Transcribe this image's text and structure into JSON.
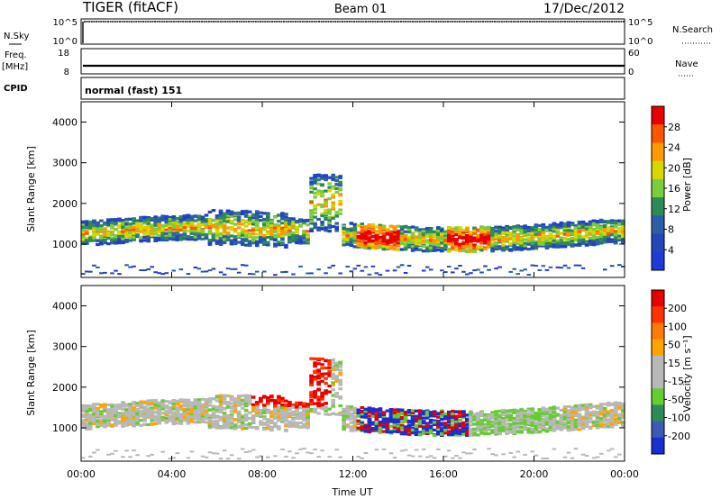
{
  "header": {
    "station": "TIGER (fitACF)",
    "beam": "Beam 01",
    "date": "17/Dec/2012"
  },
  "status_panels": {
    "nsky_label": "N.Sky",
    "nsky_ticks": [
      "10^5",
      "10^0"
    ],
    "nsearch_label": "N.Search",
    "nsearch_ticks": [
      "10^5",
      "10^0"
    ],
    "freq_label_top": "Freq.",
    "freq_label_unit": "[MHz]",
    "freq_ticks": [
      "18",
      "8"
    ],
    "nave_label": "Nave",
    "nave_ticks": [
      "60",
      "0"
    ],
    "cpid_label": "CPID",
    "cpid_value": "normal (fast) 151"
  },
  "colors": {
    "power": [
      "#1f3ad9",
      "#2346b8",
      "#2c5fa8",
      "#2e8b57",
      "#7ccd3c",
      "#d6d600",
      "#ff9900",
      "#ff5500",
      "#e60000"
    ],
    "velocity": [
      "#1a2fd0",
      "#3c5bb5",
      "#2e8b57",
      "#66cc33",
      "#b8b8b8",
      "#b8b8b8",
      "#ffa500",
      "#ff7a00",
      "#ff3300",
      "#e60000"
    ]
  },
  "chart_data": [
    {
      "type": "heatmap",
      "panel": "power",
      "ylabel": "Slant Range [km]",
      "xlabel": "",
      "x_ticks": [
        "00:00",
        "04:00",
        "08:00",
        "12:00",
        "16:00",
        "20:00",
        "00:00"
      ],
      "x_range_hours": [
        0,
        24
      ],
      "y_ticks": [
        "1000",
        "2000",
        "3000",
        "4000"
      ],
      "ylim": [
        180,
        4500
      ],
      "colorbar_label": "Power [dB]",
      "colorbar_ticks": [
        "4",
        "8",
        "12",
        "16",
        "20",
        "24",
        "28"
      ]
    },
    {
      "type": "heatmap",
      "panel": "velocity",
      "ylabel": "Slant Range [km]",
      "xlabel": "Time UT",
      "x_ticks": [
        "00:00",
        "04:00",
        "08:00",
        "12:00",
        "16:00",
        "20:00",
        "00:00"
      ],
      "x_range_hours": [
        0,
        24
      ],
      "y_ticks": [
        "1000",
        "2000",
        "3000",
        "4000"
      ],
      "ylim": [
        180,
        4500
      ],
      "colorbar_label": "Velocity [m s⁻¹]",
      "colorbar_ticks": [
        "200",
        "100",
        "50",
        "15",
        "-15",
        "-50",
        "-100",
        "-200"
      ]
    }
  ]
}
